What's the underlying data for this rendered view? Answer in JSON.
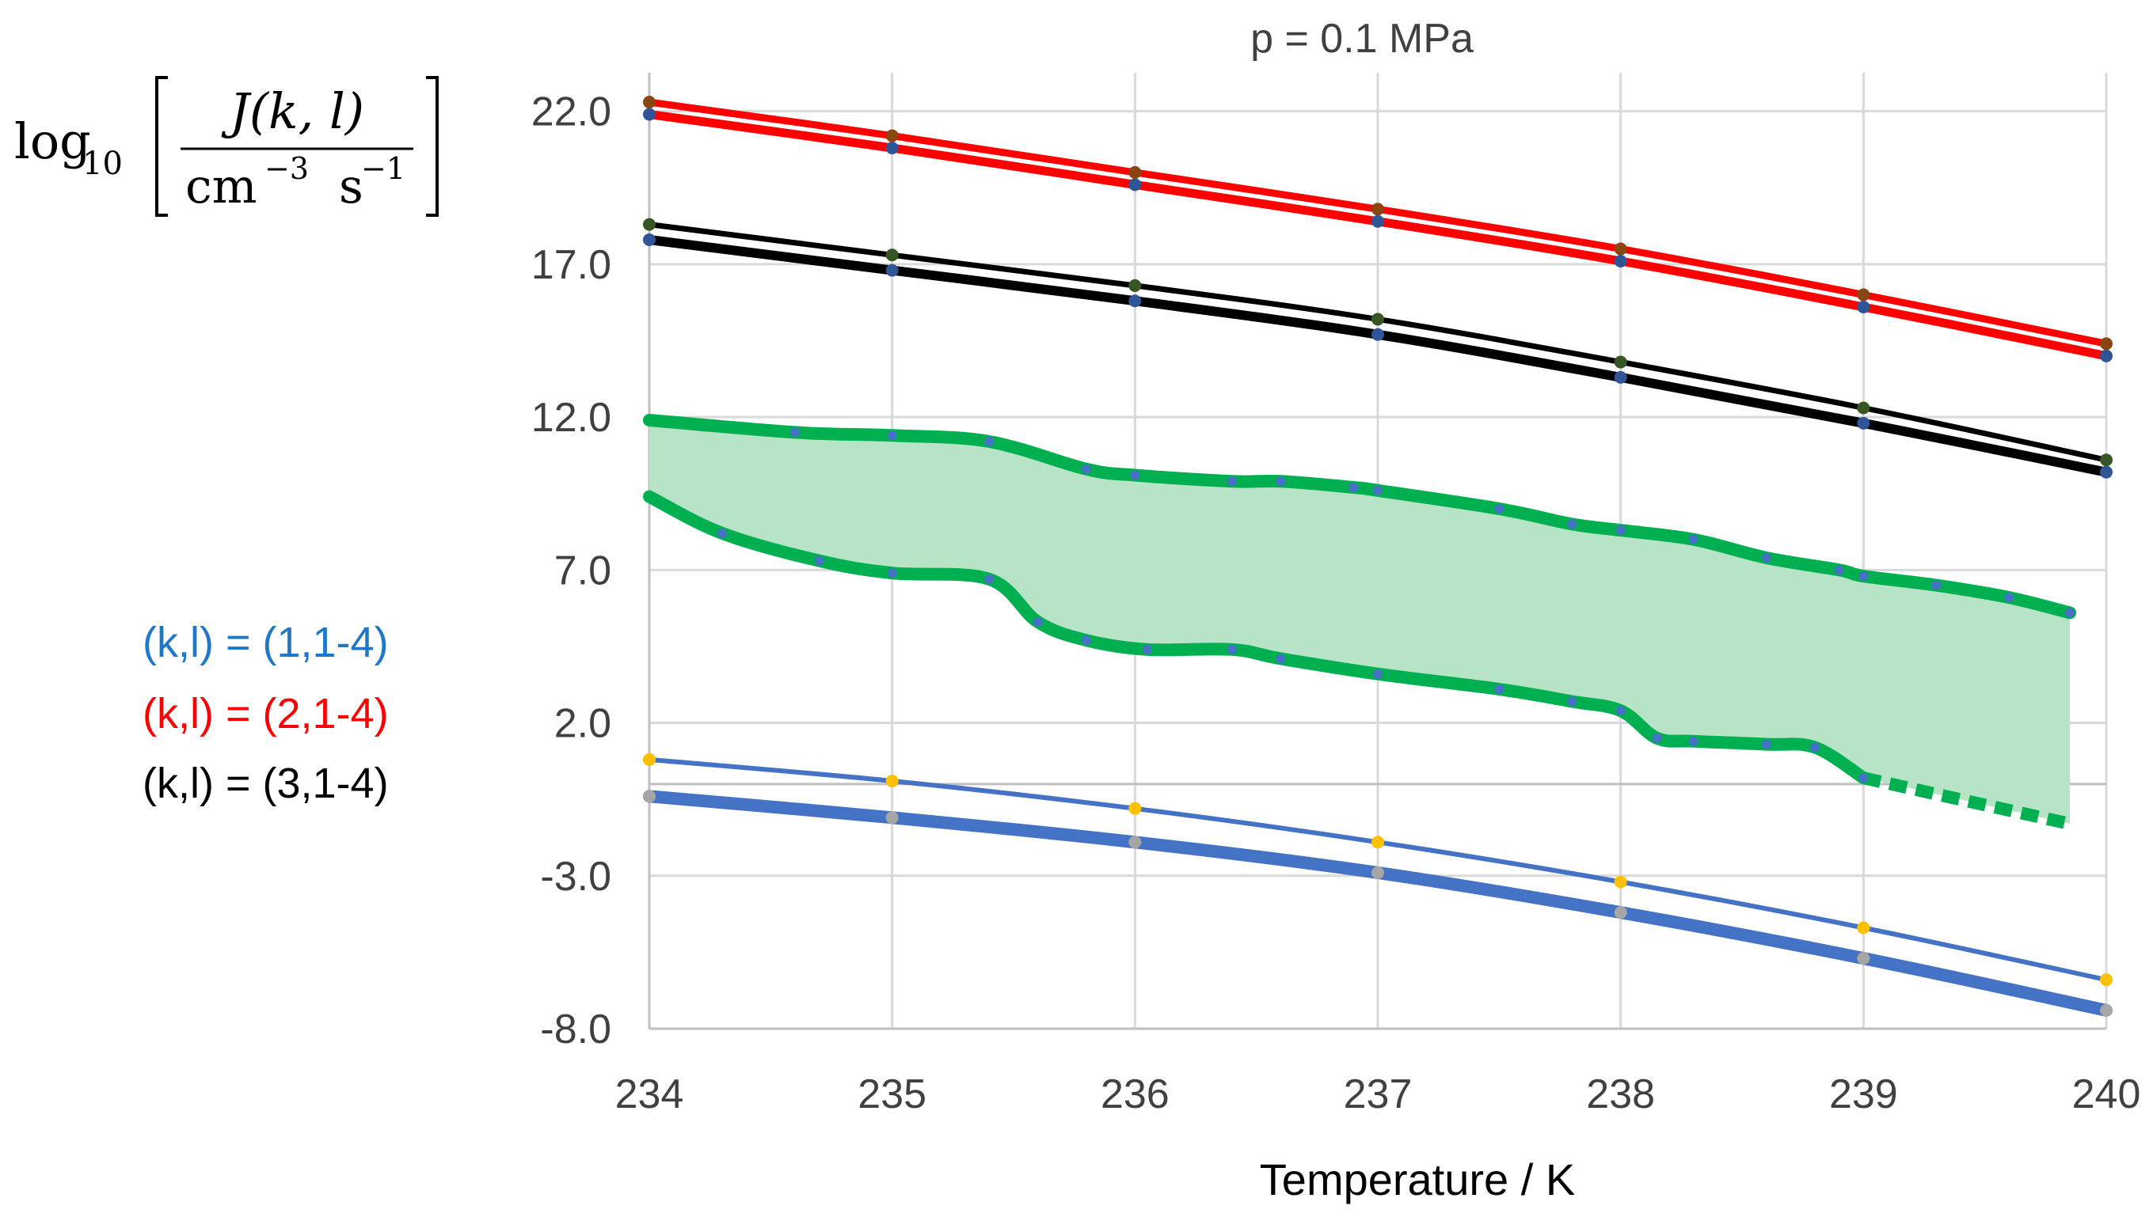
{
  "chart_data": {
    "type": "line",
    "title": "p = 0.1 MPa",
    "xlabel": "Temperature / K",
    "ylabel": {
      "log": "log",
      "base": "10",
      "numerator": "J(k, l)",
      "denominator_unit1": "cm",
      "denominator_exp1": "−3",
      "denominator_unit2": "s",
      "denominator_exp2": "−1"
    },
    "xlim": [
      234,
      240
    ],
    "ylim": [
      -8,
      23
    ],
    "xticks": [
      "234",
      "235",
      "236",
      "237",
      "238",
      "239",
      "240"
    ],
    "yticks": [
      {
        "value": 22,
        "label": "22.0"
      },
      {
        "value": 17,
        "label": "17.0"
      },
      {
        "value": 12,
        "label": "12.0"
      },
      {
        "value": 7,
        "label": "7.0"
      },
      {
        "value": 2,
        "label": "2.0"
      },
      {
        "value": -3,
        "label": "-3.0"
      },
      {
        "value": -8,
        "label": "-8.0"
      }
    ],
    "reference_line_y": 0,
    "legend": [
      {
        "label": "(k,l) = (1,1-4)",
        "color": "#1f77c8"
      },
      {
        "label": "(k,l) = (2,1-4)",
        "color": "#ff0000"
      },
      {
        "label": "(k,l) = (3,1-4)",
        "color": "#000000"
      }
    ],
    "series": [
      {
        "name": "k=2, l=1",
        "group": "red",
        "color": "#ff0000",
        "width": 9,
        "marker": "#8b4513",
        "x": [
          234,
          235,
          236,
          237,
          238,
          239,
          240
        ],
        "values": [
          22.3,
          21.2,
          20.0,
          18.8,
          17.5,
          16.0,
          14.4
        ]
      },
      {
        "name": "k=2, l=2-4",
        "group": "red",
        "color": "#ff0000",
        "width": 11,
        "marker": "#2f5597",
        "x": [
          234,
          235,
          236,
          237,
          238,
          239,
          240
        ],
        "values": [
          21.9,
          20.8,
          19.6,
          18.4,
          17.1,
          15.6,
          14.0
        ]
      },
      {
        "name": "k=3, l=1",
        "group": "black",
        "color": "#000000",
        "width": 7,
        "marker": "#375623",
        "x": [
          234,
          235,
          236,
          237,
          238,
          239,
          240
        ],
        "values": [
          18.3,
          17.3,
          16.3,
          15.2,
          13.8,
          12.3,
          10.6
        ]
      },
      {
        "name": "k=3, l=2-4",
        "group": "black",
        "color": "#000000",
        "width": 12,
        "marker": "#2f5597",
        "x": [
          234,
          235,
          236,
          237,
          238,
          239,
          240
        ],
        "values": [
          17.8,
          16.8,
          15.8,
          14.7,
          13.3,
          11.8,
          10.2
        ]
      },
      {
        "name": "k=1, l=1",
        "group": "blue",
        "color": "#4472c4",
        "width": 6,
        "marker": "#ffc000",
        "x": [
          234,
          235,
          236,
          237,
          238,
          239,
          240
        ],
        "values": [
          0.8,
          0.1,
          -0.8,
          -1.9,
          -3.2,
          -4.7,
          -6.4
        ]
      },
      {
        "name": "k=1, l=2-4",
        "group": "blue",
        "color": "#4472c4",
        "width": 16,
        "marker": "#a5a5a5",
        "x": [
          234,
          235,
          236,
          237,
          238,
          239,
          240
        ],
        "values": [
          -0.4,
          -1.1,
          -1.9,
          -2.9,
          -4.2,
          -5.7,
          -7.4
        ]
      }
    ],
    "band": {
      "color": "#b7e4c7",
      "edge_color": "#00b050",
      "upper": {
        "x": [
          234,
          234.6,
          235.0,
          235.4,
          235.8,
          236.0,
          236.4,
          236.6,
          236.9,
          237.0,
          237.5,
          237.8,
          238.0,
          238.3,
          238.6,
          238.9,
          239.0,
          239.3,
          239.6,
          239.85
        ],
        "values": [
          11.9,
          11.5,
          11.4,
          11.2,
          10.3,
          10.1,
          9.9,
          9.9,
          9.7,
          9.6,
          9.0,
          8.5,
          8.3,
          8.0,
          7.4,
          7.0,
          6.8,
          6.5,
          6.1,
          5.6
        ]
      },
      "lower": {
        "x": [
          234,
          234.3,
          234.7,
          235.0,
          235.4,
          235.6,
          235.8,
          236.05,
          236.4,
          236.6,
          237.0,
          237.5,
          237.8,
          238.0,
          238.15,
          238.3,
          238.6,
          238.8,
          239.0
        ],
        "values": [
          9.4,
          8.2,
          7.3,
          6.9,
          6.7,
          5.3,
          4.7,
          4.4,
          4.4,
          4.1,
          3.6,
          3.1,
          2.7,
          2.4,
          1.5,
          1.4,
          1.3,
          1.2,
          0.2
        ]
      },
      "lower_extrapolated": {
        "x": [
          239.0,
          239.85
        ],
        "values": [
          0.2,
          -1.3
        ]
      }
    }
  }
}
